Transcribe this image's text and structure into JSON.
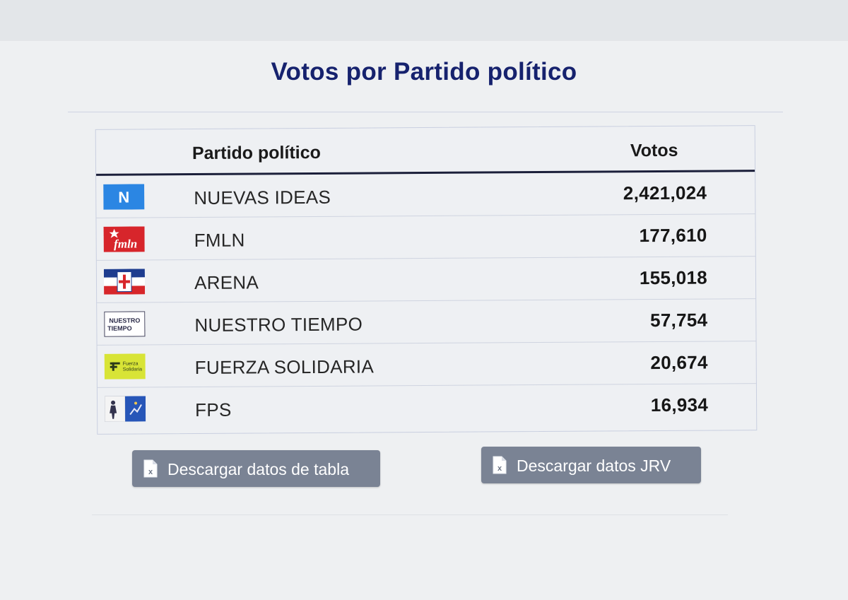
{
  "title": "Votos por Partido político",
  "table": {
    "headers": {
      "party": "Partido político",
      "votes": "Votos"
    },
    "rows": [
      {
        "logo": "nuevas-ideas-logo",
        "logo_text": "N",
        "name": "NUEVAS IDEAS",
        "votes": "2,421,024"
      },
      {
        "logo": "fmln-logo",
        "logo_text": "fmln",
        "name": "FMLN",
        "votes": "177,610"
      },
      {
        "logo": "arena-logo",
        "logo_text": "",
        "name": "ARENA",
        "votes": "155,018"
      },
      {
        "logo": "nuestro-tiempo-logo",
        "logo_text": "NUESTRO TIEMPO",
        "name": "NUESTRO TIEMPO",
        "votes": "57,754"
      },
      {
        "logo": "fuerza-solidaria-logo",
        "logo_text": "Fuerza Solidaria",
        "name": "FUERZA SOLIDARIA",
        "votes": "20,674"
      },
      {
        "logo": "fps-logo",
        "logo_text": "",
        "name": "FPS",
        "votes": "16,934"
      }
    ]
  },
  "buttons": {
    "download_table": "Descargar datos de tabla",
    "download_jrv": "Descargar datos JRV"
  },
  "colors": {
    "title": "#16226e",
    "button": "#7a8394",
    "nuevas_ideas": "#2b86e3",
    "fmln": "#d7252b",
    "arena_red": "#d7262a",
    "arena_blue": "#1d3c8f",
    "fuerza_solidaria": "#d8e436"
  },
  "icons": [
    "excel-file-icon"
  ]
}
